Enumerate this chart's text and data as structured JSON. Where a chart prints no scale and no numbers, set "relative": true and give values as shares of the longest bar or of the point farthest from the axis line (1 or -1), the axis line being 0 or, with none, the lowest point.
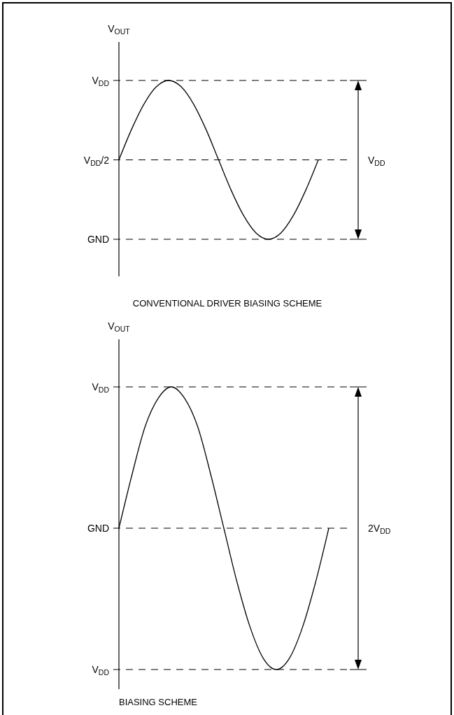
{
  "chart_data": [
    {
      "type": "line",
      "title": "CONVENTIONAL DRIVER BIASING SCHEME",
      "ylabel": "V$_{OUT}$",
      "relative": true,
      "categories": [
        null,
        null,
        null,
        null,
        null,
        null,
        null,
        null,
        null,
        null,
        null,
        null,
        null,
        null,
        null,
        null,
        null
      ],
      "series": [
        {
          "color": "#000000",
          "values": [
            0.5,
            0.69,
            0.85,
            0.96,
            1,
            0.96,
            0.85,
            0.69,
            0.5,
            0.31,
            0.15,
            0.04,
            0,
            0.04,
            0.15,
            0.31,
            0.5
          ]
        }
      ],
      "ref_lines": [
        {
          "axis": "y",
          "value": 1,
          "label": "V$_{DD}$",
          "line_style": "dashed"
        },
        {
          "axis": "y",
          "value": 0.5,
          "label": "V$_{DD}$/2",
          "line_style": "dashed"
        },
        {
          "axis": "y",
          "value": 0,
          "label": "GND",
          "line_style": "dashed"
        }
      ],
      "marker": "none",
      "line_style": "solid",
      "annotations": [
        "V$_{DD}$"
      ]
    },
    {
      "type": "line",
      "title": "BIASING SCHEME",
      "ylabel": "V$_{OUT}$",
      "relative": true,
      "categories": [
        null,
        null,
        null,
        null,
        null,
        null,
        null,
        null,
        null,
        null,
        null,
        null,
        null,
        null,
        null,
        null,
        null
      ],
      "series": [
        {
          "color": "#000000",
          "values": [
            0.5,
            0.69,
            0.86,
            0.96,
            1,
            0.96,
            0.86,
            0.69,
            0.5,
            0.31,
            0.15,
            0.04,
            0,
            0.04,
            0.15,
            0.31,
            0.5
          ]
        }
      ],
      "ref_lines": [
        {
          "axis": "y",
          "value": 1,
          "label": "V$_{DD}$",
          "line_style": "dashed"
        },
        {
          "axis": "y",
          "value": 0.5,
          "label": "GND",
          "line_style": "dashed"
        },
        {
          "axis": "y",
          "value": 0,
          "label": "V$_{DD}$",
          "line_style": "dashed"
        }
      ],
      "marker": "none",
      "line_style": "solid",
      "annotations": [
        "2V$_{DD}$"
      ]
    }
  ]
}
